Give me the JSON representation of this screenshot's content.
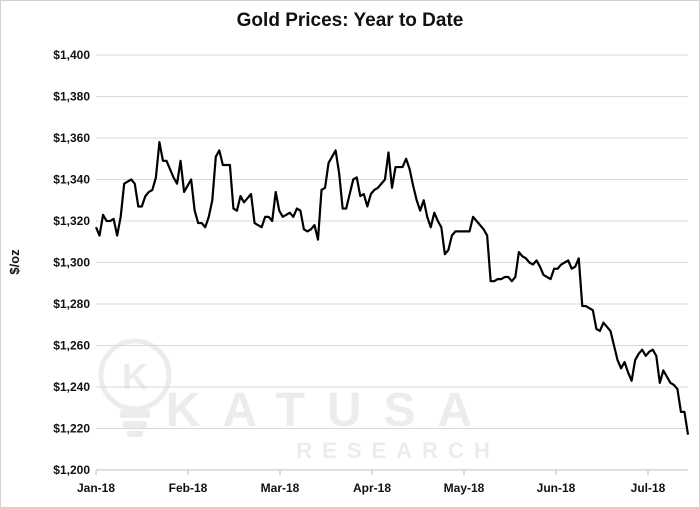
{
  "chart_data": {
    "type": "line",
    "title": "Gold Prices: Year to Date",
    "xlabel": "",
    "ylabel": "$/oz",
    "ylim": [
      1200,
      1400
    ],
    "y_ticks": [
      1200,
      1220,
      1240,
      1260,
      1280,
      1300,
      1320,
      1340,
      1360,
      1380,
      1400
    ],
    "y_tick_labels": [
      "$1,200",
      "$1,220",
      "$1,240",
      "$1,260",
      "$1,280",
      "$1,300",
      "$1,320",
      "$1,340",
      "$1,360",
      "$1,380",
      "$1,400"
    ],
    "x_tick_labels": [
      "Jan-18",
      "Feb-18",
      "Mar-18",
      "Apr-18",
      "May-18",
      "Jun-18",
      "Jul-18"
    ],
    "grid": "horizontal",
    "line_color": "#000000",
    "series": [
      {
        "values": [
          1317,
          1313,
          1323,
          1320,
          1320,
          1321,
          1313,
          1322,
          1338,
          1339,
          1340,
          1338,
          1327,
          1327,
          1332,
          1334,
          1335,
          1341,
          1358,
          1349,
          1349,
          1345,
          1341,
          1338,
          1349,
          1334,
          1337,
          1340,
          1325,
          1319,
          1319,
          1317,
          1322,
          1330,
          1351,
          1354,
          1347,
          1347,
          1347,
          1326,
          1325,
          1332,
          1329,
          1331,
          1333,
          1319,
          1318,
          1317,
          1322,
          1322,
          1320,
          1334,
          1325,
          1322,
          1323,
          1324,
          1322,
          1326,
          1325,
          1316,
          1315,
          1316,
          1318,
          1311,
          1335,
          1336,
          1348,
          1351,
          1354,
          1343,
          1326,
          1326,
          1333,
          1340,
          1341,
          1332,
          1333,
          1327,
          1333,
          1335,
          1336,
          1338,
          1340,
          1353,
          1336,
          1346,
          1346,
          1346,
          1350,
          1345,
          1337,
          1330,
          1325,
          1330,
          1322,
          1317,
          1324,
          1320,
          1317,
          1304,
          1306,
          1313,
          1315,
          1315,
          1315,
          1315,
          1315,
          1322,
          1320,
          1318,
          1316,
          1313,
          1291,
          1291,
          1292,
          1292,
          1293,
          1293,
          1291,
          1293,
          1305,
          1303,
          1302,
          1300,
          1299,
          1301,
          1298,
          1294,
          1293,
          1292,
          1297,
          1297,
          1299,
          1300,
          1301,
          1297,
          1298,
          1302,
          1279,
          1279,
          1278,
          1277,
          1268,
          1267,
          1271,
          1269,
          1267,
          1260,
          1253,
          1249,
          1252,
          1247,
          1243,
          1253,
          1256,
          1258,
          1255,
          1257,
          1258,
          1255,
          1242,
          1248,
          1245,
          1242,
          1241,
          1239,
          1228,
          1228,
          1217
        ]
      }
    ]
  },
  "watermark": {
    "brand": "KATUSA",
    "sub": "RESEARCH",
    "logo_letter": "K"
  }
}
